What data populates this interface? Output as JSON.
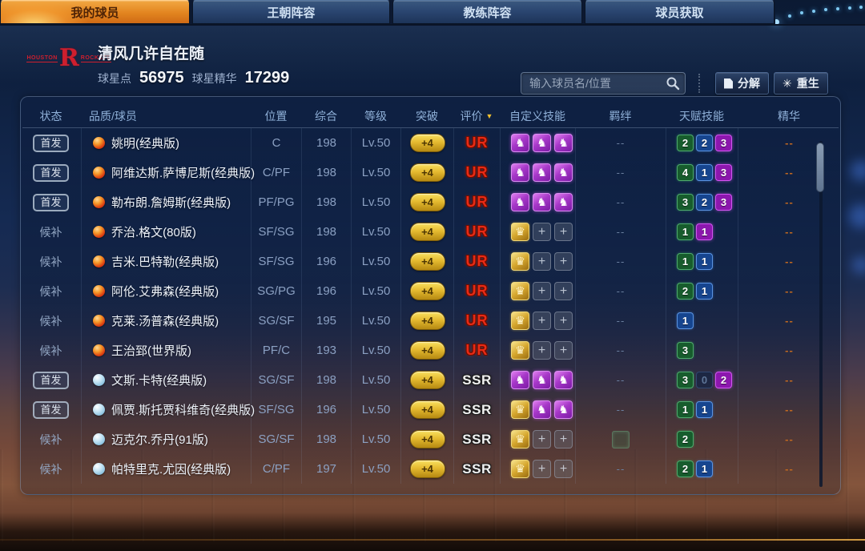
{
  "tabs": [
    {
      "label": "我的球员",
      "active": true
    },
    {
      "label": "王朝阵容",
      "active": false
    },
    {
      "label": "教练阵容",
      "active": false
    },
    {
      "label": "球员获取",
      "active": false
    }
  ],
  "team": {
    "logo_left": "HOUSTON",
    "logo_letter": "R",
    "logo_right": "ROCKETS",
    "player_name": "清风几许自在随",
    "currencies": [
      {
        "label": "球星点",
        "value": "56975"
      },
      {
        "label": "球星精华",
        "value": "17299"
      }
    ]
  },
  "toolbar": {
    "search_placeholder": "输入球员名/位置",
    "decompose_label": "分解",
    "rebirth_label": "重生",
    "rebirth_icon": "✳"
  },
  "glyphs": {
    "purple_skill": "♞",
    "gold_skill": "♛",
    "plus_slot": "+",
    "sort_arrow": "▼",
    "dash": "--"
  },
  "colors": {
    "accent_orange": "#e8882a",
    "ur_red": "#e82b15",
    "ssr_silver": "#f1f1f1",
    "talent_green": "#175c2d",
    "talent_blue": "#16458f",
    "talent_purple": "#8c17ae",
    "gold_pill": "#e5ba30",
    "essence_dash": "#c06820"
  },
  "table": {
    "columns": [
      {
        "label": "状态"
      },
      {
        "label": "品质/球员"
      },
      {
        "label": "位置"
      },
      {
        "label": "综合"
      },
      {
        "label": "等级"
      },
      {
        "label": "突破"
      },
      {
        "label": "评价",
        "sort": true
      },
      {
        "label": "自定义技能"
      },
      {
        "label": "羁绊"
      },
      {
        "label": "天赋技能"
      },
      {
        "label": "精华"
      }
    ],
    "rows": [
      {
        "status": "首发",
        "starter": true,
        "quality": "red",
        "name": "姚明(经典版)",
        "position": "C",
        "overall": "198",
        "level": "Lv.50",
        "breakthrough": "+4",
        "rating": "UR",
        "skills": [
          "purple",
          "purple",
          "purple"
        ],
        "bond": "--",
        "talents": [
          [
            "green",
            "2"
          ],
          [
            "blue",
            "2"
          ],
          [
            "purple",
            "3"
          ]
        ],
        "essence": "--"
      },
      {
        "status": "首发",
        "starter": true,
        "quality": "red",
        "name": "阿维达斯.萨博尼斯(经典版)",
        "position": "C/PF",
        "overall": "198",
        "level": "Lv.50",
        "breakthrough": "+4",
        "rating": "UR",
        "skills": [
          "purple",
          "purple",
          "purple"
        ],
        "bond": "--",
        "talents": [
          [
            "green",
            "4"
          ],
          [
            "blue",
            "1"
          ],
          [
            "purple",
            "3"
          ]
        ],
        "essence": "--"
      },
      {
        "status": "首发",
        "starter": true,
        "quality": "red",
        "name": "勒布朗.詹姆斯(经典版)",
        "position": "PF/PG",
        "overall": "198",
        "level": "Lv.50",
        "breakthrough": "+4",
        "rating": "UR",
        "skills": [
          "purple",
          "purple",
          "purple"
        ],
        "bond": "--",
        "talents": [
          [
            "green",
            "3"
          ],
          [
            "blue",
            "2"
          ],
          [
            "purple",
            "3"
          ]
        ],
        "essence": "--"
      },
      {
        "status": "候补",
        "starter": false,
        "quality": "red",
        "name": "乔治.格文(80版)",
        "position": "SF/SG",
        "overall": "198",
        "level": "Lv.50",
        "breakthrough": "+4",
        "rating": "UR",
        "skills": [
          "gold",
          "plus",
          "plus"
        ],
        "bond": "--",
        "talents": [
          [
            "green",
            "1"
          ],
          [
            "purple",
            "1"
          ]
        ],
        "essence": "--"
      },
      {
        "status": "候补",
        "starter": false,
        "quality": "red",
        "name": "吉米.巴特勒(经典版)",
        "position": "SF/SG",
        "overall": "196",
        "level": "Lv.50",
        "breakthrough": "+4",
        "rating": "UR",
        "skills": [
          "gold",
          "plus",
          "plus"
        ],
        "bond": "--",
        "talents": [
          [
            "green",
            "1"
          ],
          [
            "blue",
            "1"
          ]
        ],
        "essence": "--"
      },
      {
        "status": "候补",
        "starter": false,
        "quality": "red",
        "name": "阿伦.艾弗森(经典版)",
        "position": "SG/PG",
        "overall": "196",
        "level": "Lv.50",
        "breakthrough": "+4",
        "rating": "UR",
        "skills": [
          "gold",
          "plus",
          "plus"
        ],
        "bond": "--",
        "talents": [
          [
            "green",
            "2"
          ],
          [
            "blue",
            "1"
          ]
        ],
        "essence": "--"
      },
      {
        "status": "候补",
        "starter": false,
        "quality": "red",
        "name": "克莱.汤普森(经典版)",
        "position": "SG/SF",
        "overall": "195",
        "level": "Lv.50",
        "breakthrough": "+4",
        "rating": "UR",
        "skills": [
          "gold",
          "plus",
          "plus"
        ],
        "bond": "--",
        "talents": [
          [
            "blue",
            "1"
          ]
        ],
        "essence": "--"
      },
      {
        "status": "候补",
        "starter": false,
        "quality": "red",
        "name": "王治郅(世界版)",
        "position": "PF/C",
        "overall": "193",
        "level": "Lv.50",
        "breakthrough": "+4",
        "rating": "UR",
        "skills": [
          "gold",
          "plus",
          "plus"
        ],
        "bond": "--",
        "talents": [
          [
            "green",
            "3"
          ]
        ],
        "essence": "--"
      },
      {
        "status": "首发",
        "starter": true,
        "quality": "blue",
        "name": "文斯.卡特(经典版)",
        "position": "SG/SF",
        "overall": "198",
        "level": "Lv.50",
        "breakthrough": "+4",
        "rating": "SSR",
        "skills": [
          "purple",
          "purple",
          "purple"
        ],
        "bond": "--",
        "talents": [
          [
            "green",
            "3"
          ],
          [
            "zero",
            "0"
          ],
          [
            "purple",
            "2"
          ]
        ],
        "essence": "--"
      },
      {
        "status": "首发",
        "starter": true,
        "quality": "blue",
        "name": "佩贾.斯托贾科维奇(经典版)",
        "position": "SF/SG",
        "overall": "196",
        "level": "Lv.50",
        "breakthrough": "+4",
        "rating": "SSR",
        "skills": [
          "gold",
          "purple",
          "purple"
        ],
        "bond": "--",
        "talents": [
          [
            "green",
            "1"
          ],
          [
            "blue",
            "1"
          ]
        ],
        "essence": "--"
      },
      {
        "status": "候补",
        "starter": false,
        "quality": "blue",
        "name": "迈克尔.乔丹(91版)",
        "position": "SG/SF",
        "overall": "198",
        "level": "Lv.50",
        "breakthrough": "+4",
        "rating": "SSR",
        "skills": [
          "gold",
          "plus",
          "plus"
        ],
        "bond": "icon",
        "talents": [
          [
            "green",
            "2"
          ]
        ],
        "essence": "--"
      },
      {
        "status": "候补",
        "starter": false,
        "quality": "blue",
        "name": "帕特里克.尤因(经典版)",
        "position": "C/PF",
        "overall": "197",
        "level": "Lv.50",
        "breakthrough": "+4",
        "rating": "SSR",
        "skills": [
          "gold",
          "plus",
          "plus"
        ],
        "bond": "--",
        "talents": [
          [
            "green",
            "2"
          ],
          [
            "blue",
            "1"
          ]
        ],
        "essence": "--"
      }
    ]
  }
}
